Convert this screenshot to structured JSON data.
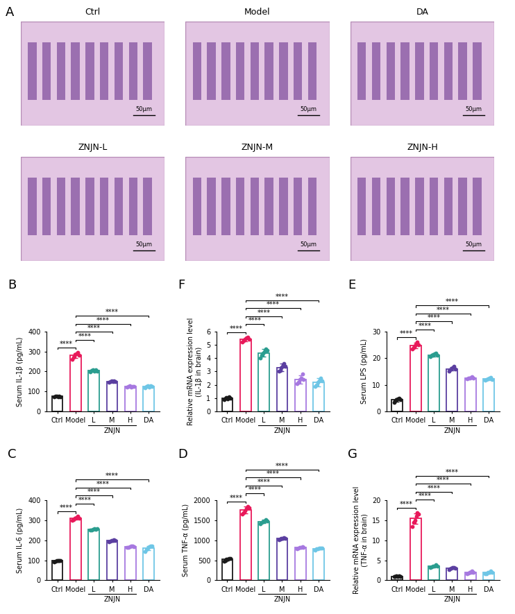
{
  "images": {
    "label": "A",
    "panels": [
      "Ctrl",
      "Model",
      "DA",
      "ZNJN-L",
      "ZNJN-M",
      "ZNJN-H"
    ],
    "scale_bar": "50μm"
  },
  "chart_data": [
    {
      "type": "bar",
      "label": "B",
      "y_label": "Serum IL-1β (pg/mL)",
      "categories": [
        "Ctrl",
        "Model",
        "L",
        "M",
        "H",
        "DA"
      ],
      "values": [
        75,
        280,
        204,
        150,
        124,
        124
      ],
      "errors": [
        3,
        13,
        5,
        3,
        3,
        4
      ],
      "points": [
        [
          72,
          75,
          78,
          74,
          76,
          73
        ],
        [
          260,
          270,
          285,
          290,
          295,
          280
        ],
        [
          198,
          205,
          210,
          203,
          207,
          202
        ],
        [
          145,
          150,
          152,
          148,
          153,
          149
        ],
        [
          120,
          124,
          127,
          122,
          126,
          125
        ],
        [
          118,
          125,
          130,
          122,
          127,
          124
        ]
      ],
      "colors": [
        "#1a1a1a",
        "#e8195a",
        "#2a9d8f",
        "#5b3fa0",
        "#a678e0",
        "#6ec6e6"
      ],
      "ylim": [
        0,
        400
      ],
      "yticks": [
        0,
        100,
        200,
        300,
        400
      ],
      "group": {
        "label": "ZNJN",
        "categories": [
          "L",
          "M",
          "H"
        ]
      },
      "annotations": [
        {
          "from": "Ctrl",
          "to": "Model",
          "text": "****"
        },
        {
          "from": "Model",
          "to": "L",
          "text": "****"
        },
        {
          "from": "Model",
          "to": "M",
          "text": "****"
        },
        {
          "from": "Model",
          "to": "H",
          "text": "****"
        },
        {
          "from": "Model",
          "to": "DA",
          "text": "****"
        }
      ]
    },
    {
      "type": "bar",
      "label": "C",
      "y_label": "Serum IL-6 (pg/mL)",
      "categories": [
        "Ctrl",
        "Model",
        "L",
        "M",
        "H",
        "DA"
      ],
      "values": [
        97,
        310,
        255,
        198,
        168,
        162
      ],
      "errors": [
        4,
        8,
        4,
        4,
        3,
        10
      ],
      "points": [
        [
          92,
          95,
          98,
          100,
          97,
          99
        ],
        [
          300,
          305,
          310,
          315,
          320,
          310
        ],
        [
          250,
          253,
          256,
          258,
          255,
          257
        ],
        [
          192,
          195,
          198,
          200,
          203,
          199
        ],
        [
          164,
          166,
          168,
          170,
          171,
          167
        ],
        [
          145,
          155,
          162,
          168,
          172,
          170
        ]
      ],
      "colors": [
        "#1a1a1a",
        "#e8195a",
        "#2a9d8f",
        "#5b3fa0",
        "#a678e0",
        "#6ec6e6"
      ],
      "ylim": [
        0,
        400
      ],
      "yticks": [
        0,
        100,
        200,
        300,
        400
      ],
      "group": {
        "label": "ZNJN",
        "categories": [
          "L",
          "M",
          "H"
        ]
      },
      "annotations": [
        {
          "from": "Ctrl",
          "to": "Model",
          "text": "****"
        },
        {
          "from": "Model",
          "to": "L",
          "text": "****"
        },
        {
          "from": "Model",
          "to": "M",
          "text": "****"
        },
        {
          "from": "Model",
          "to": "H",
          "text": "****"
        },
        {
          "from": "Model",
          "to": "DA",
          "text": "****"
        }
      ]
    },
    {
      "type": "bar",
      "label": "F",
      "y_label": "Relative mRNA expression level\n(IL-1β in brain)",
      "categories": [
        "Ctrl",
        "Model",
        "L",
        "M",
        "H",
        "DA"
      ],
      "values": [
        1.0,
        5.4,
        4.4,
        3.3,
        2.4,
        2.2
      ],
      "errors": [
        0.08,
        0.15,
        0.3,
        0.3,
        0.3,
        0.3
      ],
      "points": [
        [
          0.9,
          1.0,
          1.05,
          0.95,
          1.1,
          1.0
        ],
        [
          5.2,
          5.3,
          5.4,
          5.5,
          5.6,
          5.4
        ],
        [
          4.0,
          4.2,
          4.4,
          4.5,
          4.7,
          4.6
        ],
        [
          3.0,
          3.1,
          3.3,
          3.4,
          3.6,
          3.4
        ],
        [
          2.1,
          2.2,
          2.4,
          2.5,
          2.8,
          2.4
        ],
        [
          1.9,
          2.0,
          2.2,
          2.3,
          2.5,
          2.3
        ]
      ],
      "colors": [
        "#1a1a1a",
        "#e8195a",
        "#2a9d8f",
        "#5b3fa0",
        "#a678e0",
        "#6ec6e6"
      ],
      "ylim": [
        0,
        6
      ],
      "yticks": [
        0,
        1,
        2,
        3,
        4,
        5,
        6
      ],
      "group": {
        "label": "ZNJN",
        "categories": [
          "L",
          "M",
          "H"
        ]
      },
      "annotations": [
        {
          "from": "Ctrl",
          "to": "Model",
          "text": "****"
        },
        {
          "from": "Model",
          "to": "L",
          "text": "****"
        },
        {
          "from": "Model",
          "to": "M",
          "text": "****"
        },
        {
          "from": "Model",
          "to": "H",
          "text": "****"
        },
        {
          "from": "Model",
          "to": "DA",
          "text": "****"
        }
      ]
    },
    {
      "type": "bar",
      "label": "D",
      "y_label": "Serum TNF-α (pg/mL)",
      "categories": [
        "Ctrl",
        "Model",
        "L",
        "M",
        "H",
        "DA"
      ],
      "values": [
        520,
        1760,
        1470,
        1040,
        820,
        790
      ],
      "errors": [
        30,
        80,
        40,
        20,
        20,
        20
      ],
      "points": [
        [
          480,
          500,
          520,
          530,
          550,
          540
        ],
        [
          1650,
          1700,
          1750,
          1800,
          1850,
          1810
        ],
        [
          1420,
          1450,
          1470,
          1490,
          1510,
          1480
        ],
        [
          1010,
          1030,
          1040,
          1050,
          1060,
          1040
        ],
        [
          790,
          810,
          820,
          830,
          840,
          830
        ],
        [
          760,
          780,
          790,
          800,
          810,
          800
        ]
      ],
      "colors": [
        "#1a1a1a",
        "#e8195a",
        "#2a9d8f",
        "#5b3fa0",
        "#a678e0",
        "#6ec6e6"
      ],
      "ylim": [
        0,
        2000
      ],
      "yticks": [
        0,
        500,
        1000,
        1500,
        2000
      ],
      "group": {
        "label": "ZNJN",
        "categories": [
          "L",
          "M",
          "H"
        ]
      },
      "annotations": [
        {
          "from": "Ctrl",
          "to": "Model",
          "text": "****"
        },
        {
          "from": "Model",
          "to": "L",
          "text": "****"
        },
        {
          "from": "Model",
          "to": "M",
          "text": "****"
        },
        {
          "from": "Model",
          "to": "H",
          "text": "****"
        },
        {
          "from": "Model",
          "to": "DA",
          "text": "****"
        }
      ]
    },
    {
      "type": "bar",
      "label": "E",
      "y_label": "Serum LPS (pg/mL)",
      "categories": [
        "Ctrl",
        "Model",
        "L",
        "M",
        "H",
        "DA"
      ],
      "values": [
        4.3,
        24.8,
        21.2,
        16.0,
        12.6,
        12.2
      ],
      "errors": [
        0.6,
        1.0,
        0.6,
        0.7,
        0.3,
        0.4
      ],
      "points": [
        [
          3.5,
          4.0,
          4.3,
          4.6,
          5.0,
          4.4
        ],
        [
          23.5,
          24.0,
          24.8,
          25.5,
          26.0,
          25.0
        ],
        [
          20.5,
          21.0,
          21.2,
          21.5,
          22.0,
          21.0
        ],
        [
          15.0,
          15.6,
          16.0,
          16.4,
          17.0,
          16.0
        ],
        [
          12.2,
          12.4,
          12.6,
          12.8,
          13.0,
          12.6
        ],
        [
          11.8,
          12.0,
          12.2,
          12.4,
          12.8,
          12.0
        ]
      ],
      "colors": [
        "#1a1a1a",
        "#e8195a",
        "#2a9d8f",
        "#5b3fa0",
        "#a678e0",
        "#6ec6e6"
      ],
      "ylim": [
        0,
        30
      ],
      "yticks": [
        0,
        10,
        20,
        30
      ],
      "group": {
        "label": "ZNJN",
        "categories": [
          "L",
          "M",
          "H"
        ]
      },
      "annotations": [
        {
          "from": "Ctrl",
          "to": "Model",
          "text": "****"
        },
        {
          "from": "Model",
          "to": "L",
          "text": "****"
        },
        {
          "from": "Model",
          "to": "M",
          "text": "****"
        },
        {
          "from": "Model",
          "to": "H",
          "text": "****"
        },
        {
          "from": "Model",
          "to": "DA",
          "text": "****"
        }
      ]
    },
    {
      "type": "bar",
      "label": "G",
      "y_label": "Relative mRNA expression level\n(TNF-α in brain)",
      "categories": [
        "Ctrl",
        "Model",
        "L",
        "M",
        "H",
        "DA"
      ],
      "values": [
        1.0,
        15.5,
        3.5,
        3.0,
        2.0,
        1.9
      ],
      "errors": [
        0.1,
        1.3,
        0.2,
        0.2,
        0.3,
        0.3
      ],
      "points": [
        [
          0.9,
          1.0,
          1.1,
          0.95,
          1.05,
          1.0
        ],
        [
          13.5,
          14.5,
          15.0,
          16.0,
          17.0,
          16.5
        ],
        [
          3.2,
          3.4,
          3.5,
          3.6,
          3.8,
          3.5
        ],
        [
          2.7,
          2.9,
          3.0,
          3.1,
          3.2,
          3.0
        ],
        [
          1.7,
          1.8,
          2.0,
          2.1,
          2.4,
          2.0
        ],
        [
          1.6,
          1.7,
          1.9,
          2.0,
          2.3,
          1.9
        ]
      ],
      "colors": [
        "#1a1a1a",
        "#e8195a",
        "#2a9d8f",
        "#5b3fa0",
        "#a678e0",
        "#6ec6e6"
      ],
      "ylim": [
        0,
        20
      ],
      "yticks": [
        0,
        5,
        10,
        15,
        20
      ],
      "group": {
        "label": "ZNJN",
        "categories": [
          "L",
          "M",
          "H"
        ]
      },
      "annotations": [
        {
          "from": "Ctrl",
          "to": "Model",
          "text": "****"
        },
        {
          "from": "Model",
          "to": "L",
          "text": "****"
        },
        {
          "from": "Model",
          "to": "M",
          "text": "****"
        },
        {
          "from": "Model",
          "to": "H",
          "text": "****"
        },
        {
          "from": "Model",
          "to": "DA",
          "text": "****"
        }
      ]
    }
  ]
}
